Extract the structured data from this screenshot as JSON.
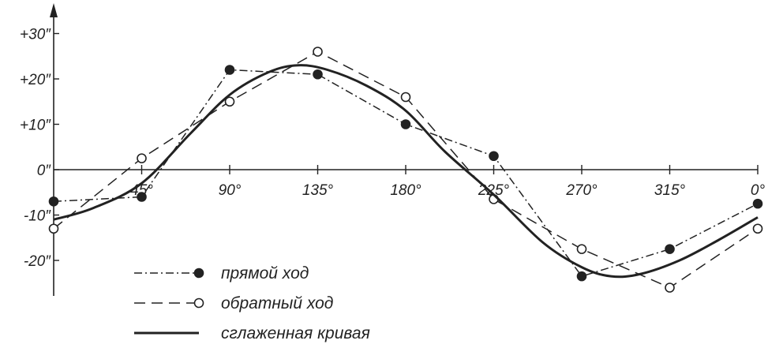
{
  "chart_data": {
    "type": "line",
    "title": "",
    "xlabel": "",
    "ylabel": "",
    "x_ticks": [
      "45°",
      "90°",
      "135°",
      "180°",
      "225°",
      "270°",
      "315°",
      "0°"
    ],
    "x_tick_values": [
      45,
      90,
      135,
      180,
      225,
      270,
      315,
      360
    ],
    "y_ticks": [
      "+30″",
      "+20″",
      "+10″",
      "0″",
      "-10″",
      "-20″"
    ],
    "y_tick_values": [
      30,
      20,
      10,
      0,
      -10,
      -20
    ],
    "xlim": [
      0,
      360
    ],
    "ylim": [
      -28,
      35
    ],
    "grid": false,
    "legend_position": "bottom-left",
    "series": [
      {
        "name": "прямой ход",
        "style": "dash-dot",
        "marker": "filled-circle",
        "color": "#222222",
        "x": [
          0,
          45,
          90,
          135,
          180,
          225,
          270,
          315,
          360
        ],
        "y": [
          -7,
          -6,
          22,
          21,
          10,
          3,
          -23.5,
          -17.5,
          -7.5
        ]
      },
      {
        "name": "обратный ход",
        "style": "dashed",
        "marker": "open-circle",
        "color": "#222222",
        "x": [
          0,
          45,
          90,
          135,
          180,
          225,
          270,
          315,
          360
        ],
        "y": [
          -13,
          2.5,
          15,
          26,
          16,
          -6.5,
          -17.5,
          -26,
          -13
        ]
      },
      {
        "name": "сглаженная кривая",
        "style": "solid",
        "marker": "none",
        "color": "#222222",
        "x": [
          0,
          20,
          45,
          70,
          90,
          110,
          125,
          140,
          160,
          180,
          200,
          225,
          250,
          270,
          285,
          300,
          320,
          340,
          360
        ],
        "y": [
          -11,
          -8.5,
          -3,
          8,
          16.5,
          21.5,
          23,
          22,
          18.5,
          13,
          4,
          -5.5,
          -16,
          -21.5,
          -23.5,
          -23,
          -20,
          -15.5,
          -10.5
        ]
      }
    ]
  }
}
